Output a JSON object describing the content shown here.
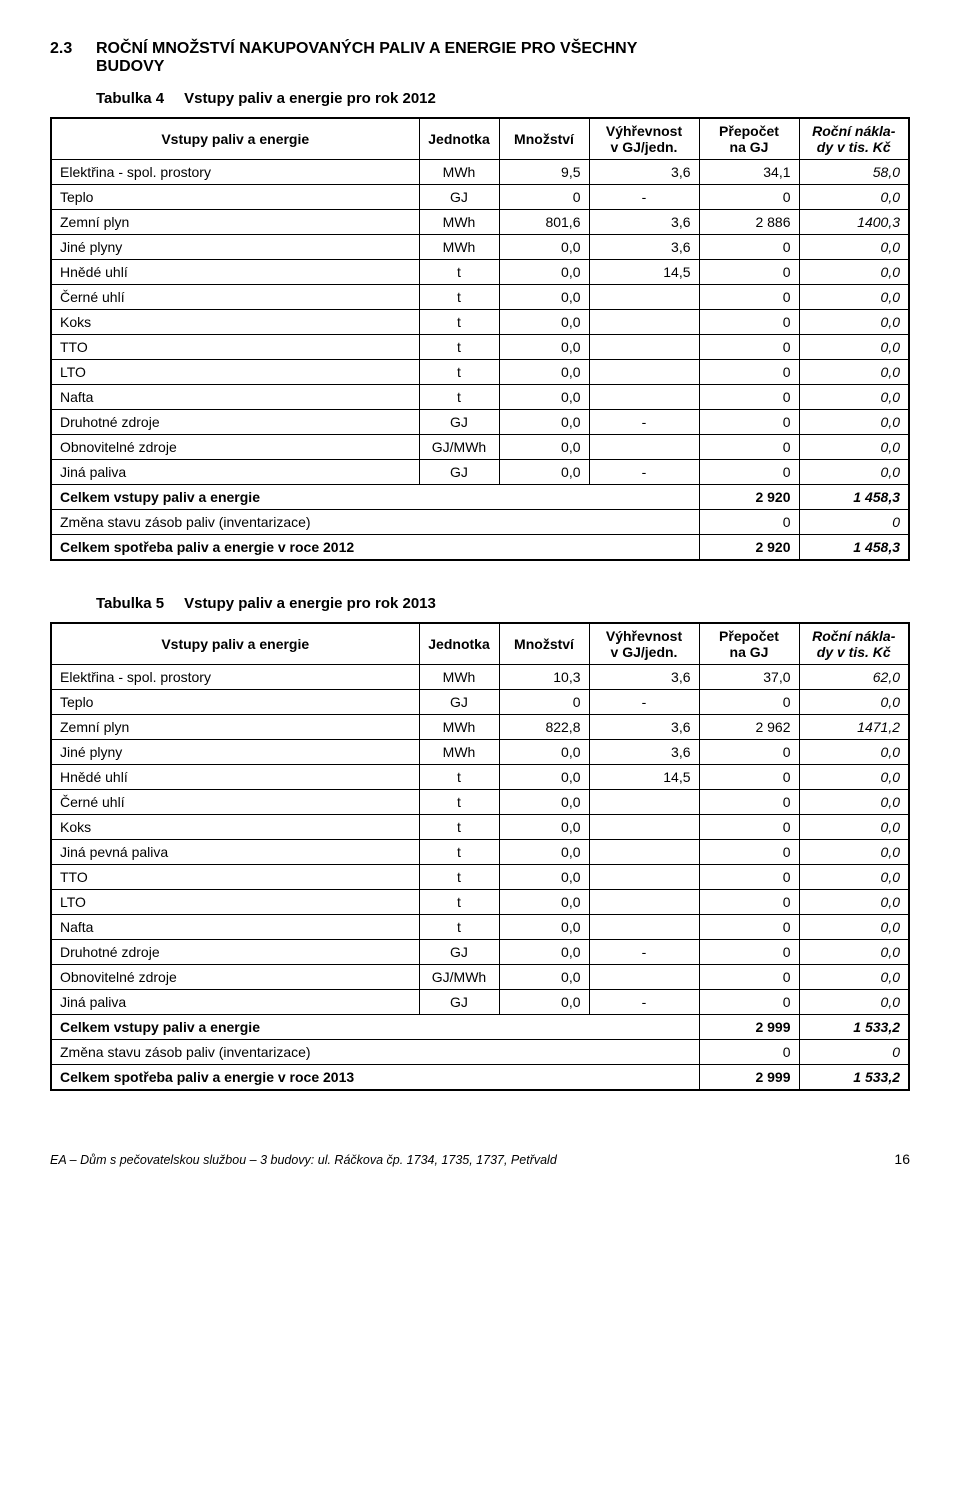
{
  "section": {
    "num": "2.3",
    "title_line1": "ROČNÍ MNOŽSTVÍ NAKUPOVANÝCH PALIV A ENERGIE PRO VŠECHNY",
    "title_line2": "BUDOVY"
  },
  "table4": {
    "caption_label": "Tabulka  4",
    "caption_text": "Vstupy paliv a energie pro rok 2012",
    "headers": [
      "Vstupy paliv a energie",
      "Jednotka",
      "Množství",
      "Výhřevnost v GJ/jedn.",
      "Přepočet na GJ",
      "Roční nákla-dy v tis. Kč"
    ],
    "rows": [
      {
        "label": "Elektřina - spol. prostory",
        "unit": "MWh",
        "qty": "9,5",
        "vyh": "3,6",
        "gj": "34,1",
        "cost": "58,0",
        "ital_cost": true
      },
      {
        "label": "Teplo",
        "unit": "GJ",
        "qty": "0",
        "vyh": "-",
        "gj": "0",
        "cost": "0,0",
        "ital_cost": true
      },
      {
        "label": "Zemní plyn",
        "unit": "MWh",
        "qty": "801,6",
        "vyh": "3,6",
        "gj": "2 886",
        "cost": "1400,3",
        "ital_cost": true
      },
      {
        "label": "Jiné plyny",
        "unit": "MWh",
        "qty": "0,0",
        "vyh": "3,6",
        "gj": "0",
        "cost": "0,0",
        "ital_cost": true
      },
      {
        "label": "Hnědé uhlí",
        "unit": "t",
        "qty": "0,0",
        "vyh": "14,5",
        "gj": "0",
        "cost": "0,0",
        "ital_cost": true
      },
      {
        "label": "Černé uhlí",
        "unit": "t",
        "qty": "0,0",
        "vyh": "",
        "gj": "0",
        "cost": "0,0",
        "ital_cost": true
      },
      {
        "label": "Koks",
        "unit": "t",
        "qty": "0,0",
        "vyh": "",
        "gj": "0",
        "cost": "0,0",
        "ital_cost": true
      },
      {
        "label": "TTO",
        "unit": "t",
        "qty": "0,0",
        "vyh": "",
        "gj": "0",
        "cost": "0,0",
        "ital_cost": true
      },
      {
        "label": "LTO",
        "unit": "t",
        "qty": "0,0",
        "vyh": "",
        "gj": "0",
        "cost": "0,0",
        "ital_cost": true
      },
      {
        "label": "Nafta",
        "unit": "t",
        "qty": "0,0",
        "vyh": "",
        "gj": "0",
        "cost": "0,0",
        "ital_cost": true
      },
      {
        "label": "Druhotné zdroje",
        "unit": "GJ",
        "qty": "0,0",
        "vyh": "-",
        "gj": "0",
        "cost": "0,0",
        "ital_cost": true
      },
      {
        "label": "Obnovitelné zdroje",
        "unit": "GJ/MWh",
        "qty": "0,0",
        "vyh": "",
        "gj": "0",
        "cost": "0,0",
        "ital_cost": true
      },
      {
        "label": "Jiná paliva",
        "unit": "GJ",
        "qty": "0,0",
        "vyh": "-",
        "gj": "0",
        "cost": "0,0",
        "ital_cost": true
      }
    ],
    "sum1": {
      "label": "Celkem vstupy paliv a energie",
      "gj": "2 920",
      "cost": "1 458,3"
    },
    "change": {
      "label": "Změna stavu zásob paliv (inventarizace)",
      "gj": "0",
      "cost": "0"
    },
    "sum2": {
      "label": "Celkem spotřeba paliv a energie v roce 2012",
      "gj": "2 920",
      "cost": "1 458,3"
    }
  },
  "table5": {
    "caption_label": "Tabulka  5",
    "caption_text": "Vstupy paliv a energie pro rok 2013",
    "headers": [
      "Vstupy paliv a energie",
      "Jednotka",
      "Množství",
      "Výhřevnost v GJ/jedn.",
      "Přepočet na GJ",
      "Roční nákla-dy v tis. Kč"
    ],
    "rows": [
      {
        "label": "Elektřina - spol. prostory",
        "unit": "MWh",
        "qty": "10,3",
        "vyh": "3,6",
        "gj": "37,0",
        "cost": "62,0",
        "ital_cost": true
      },
      {
        "label": "Teplo",
        "unit": "GJ",
        "qty": "0",
        "vyh": "-",
        "gj": "0",
        "cost": "0,0",
        "ital_cost": true
      },
      {
        "label": "Zemní plyn",
        "unit": "MWh",
        "qty": "822,8",
        "vyh": "3,6",
        "gj": "2 962",
        "cost": "1471,2",
        "ital_cost": true
      },
      {
        "label": "Jiné plyny",
        "unit": "MWh",
        "qty": "0,0",
        "vyh": "3,6",
        "gj": "0",
        "cost": "0,0",
        "ital_cost": true
      },
      {
        "label": "Hnědé uhlí",
        "unit": "t",
        "qty": "0,0",
        "vyh": "14,5",
        "gj": "0",
        "cost": "0,0",
        "ital_cost": true
      },
      {
        "label": "Černé uhlí",
        "unit": "t",
        "qty": "0,0",
        "vyh": "",
        "gj": "0",
        "cost": "0,0",
        "ital_cost": true
      },
      {
        "label": "Koks",
        "unit": "t",
        "qty": "0,0",
        "vyh": "",
        "gj": "0",
        "cost": "0,0",
        "ital_cost": true
      },
      {
        "label": "Jiná pevná paliva",
        "unit": "t",
        "qty": "0,0",
        "vyh": "",
        "gj": "0",
        "cost": "0,0",
        "ital_cost": true
      },
      {
        "label": "TTO",
        "unit": "t",
        "qty": "0,0",
        "vyh": "",
        "gj": "0",
        "cost": "0,0",
        "ital_cost": true
      },
      {
        "label": "LTO",
        "unit": "t",
        "qty": "0,0",
        "vyh": "",
        "gj": "0",
        "cost": "0,0",
        "ital_cost": true
      },
      {
        "label": "Nafta",
        "unit": "t",
        "qty": "0,0",
        "vyh": "",
        "gj": "0",
        "cost": "0,0",
        "ital_cost": true
      },
      {
        "label": "Druhotné zdroje",
        "unit": "GJ",
        "qty": "0,0",
        "vyh": "-",
        "gj": "0",
        "cost": "0,0",
        "ital_cost": true
      },
      {
        "label": "Obnovitelné zdroje",
        "unit": "GJ/MWh",
        "qty": "0,0",
        "vyh": "",
        "gj": "0",
        "cost": "0,0",
        "ital_cost": true
      },
      {
        "label": "Jiná paliva",
        "unit": "GJ",
        "qty": "0,0",
        "vyh": "-",
        "gj": "0",
        "cost": "0,0",
        "ital_cost": true
      }
    ],
    "sum1": {
      "label": "Celkem vstupy paliv a energie",
      "gj": "2 999",
      "cost": "1 533,2"
    },
    "change": {
      "label": "Změna stavu zásob paliv (inventarizace)",
      "gj": "0",
      "cost": "0"
    },
    "sum2": {
      "label": "Celkem spotřeba paliv a energie v roce 2013",
      "gj": "2 999",
      "cost": "1 533,2"
    }
  },
  "footer": {
    "text": "EA – Dům s pečovatelskou službou – 3 budovy: ul. Ráčkova čp. 1734, 1735, 1737, Petřvald",
    "page": "16"
  },
  "style": {
    "col_widths": [
      "auto",
      "80px",
      "90px",
      "110px",
      "100px",
      "110px"
    ]
  }
}
